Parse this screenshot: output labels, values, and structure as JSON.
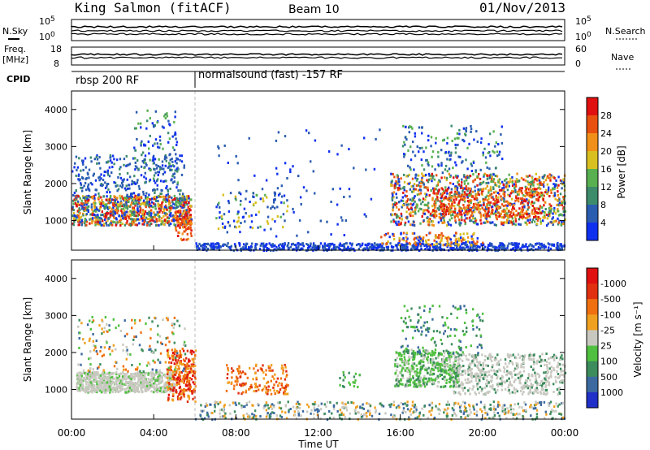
{
  "header": {
    "station": "King Salmon (fitACF)",
    "beam": "Beam 10",
    "date": "01/Nov/2013"
  },
  "left_labels": {
    "nsky": "N.Sky",
    "freq": "Freq.",
    "freq_unit": "[MHz]",
    "cpid": "CPID"
  },
  "right_labels": {
    "nsearch": "N.Search",
    "nave": "Nave"
  },
  "top_axis": {
    "nsky_ticks": [
      "10^5",
      "10^0"
    ],
    "freq_ticks": [
      "18",
      "8"
    ],
    "nsearch_ticks": [
      "10^5",
      "10^0"
    ],
    "nave_ticks": [
      "60",
      "0"
    ]
  },
  "cpid_segments": [
    {
      "label": "rbsp 200 RF",
      "start_hour": 0
    },
    {
      "label": "normalsound (fast) -157 RF",
      "start_hour": 6
    }
  ],
  "chart_data": [
    {
      "type": "heatmap",
      "name": "power",
      "xlabel": "Time UT",
      "ylabel": "Slant Range [km]",
      "xlim": [
        0,
        24
      ],
      "ylim": [
        200,
        4500
      ],
      "x_ticks": [
        "00:00",
        "04:00",
        "08:00",
        "12:00",
        "16:00",
        "20:00",
        "00:00"
      ],
      "y_ticks": [
        1000,
        2000,
        3000,
        4000
      ],
      "colorbar": {
        "label": "Power [dB]",
        "ticks": [
          4,
          8,
          12,
          16,
          20,
          24,
          28
        ],
        "colors": [
          "#1030f0",
          "#2a5cb0",
          "#3c8c6c",
          "#58b050",
          "#d8c020",
          "#f09018",
          "#e85010",
          "#e01010"
        ]
      }
    },
    {
      "type": "heatmap",
      "name": "velocity",
      "xlabel": "Time UT",
      "ylabel": "Slant Range [km]",
      "xlim": [
        0,
        24
      ],
      "ylim": [
        200,
        4500
      ],
      "x_ticks": [
        "00:00",
        "04:00",
        "08:00",
        "12:00",
        "16:00",
        "20:00",
        "00:00"
      ],
      "y_ticks": [
        1000,
        2000,
        3000,
        4000
      ],
      "colorbar": {
        "label": "Velocity [m s⁻¹]",
        "ticks": [
          "1000",
          "500",
          "100",
          "25",
          "-25",
          "-100",
          "-500",
          "-1000"
        ],
        "colors": [
          "#2030c8",
          "#3c6aa0",
          "#3c8c5c",
          "#50c040",
          "#c8c8c0",
          "#f0a020",
          "#f07010",
          "#e03010",
          "#e01010"
        ]
      }
    }
  ],
  "axis_title": "Time UT"
}
